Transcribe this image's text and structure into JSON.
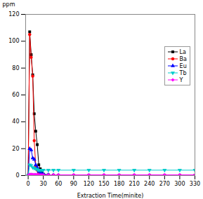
{
  "chart_data": {
    "type": "line",
    "title": "",
    "xlabel": "Extraction Time(minite)",
    "ylabel": "ppm",
    "x": [
      0,
      3,
      6,
      9,
      12,
      15,
      18,
      21,
      24,
      27,
      30,
      40,
      50,
      60,
      90,
      120,
      150,
      180,
      210,
      240,
      270,
      300,
      330
    ],
    "series": [
      {
        "name": "La",
        "color": "black",
        "marker": "square",
        "values": [
          0,
          107,
          90,
          75,
          46,
          33,
          23,
          8,
          5,
          2,
          1,
          0.5,
          0.3,
          0.1,
          0.1,
          0.1,
          0.1,
          0.1,
          0.1,
          0.1,
          0.1,
          0.1,
          0.1
        ]
      },
      {
        "name": "Ba",
        "color": "red",
        "marker": "circle",
        "values": [
          0,
          105,
          88,
          74,
          26,
          7,
          4,
          2,
          1,
          0.5,
          0.3,
          0.2,
          0.1,
          0.1,
          0.1,
          0.1,
          0.1,
          0.1,
          0.1,
          0.1,
          0.1,
          0.1,
          0.1
        ]
      },
      {
        "name": "Eu",
        "color": "blue",
        "marker": "triangle-up",
        "values": [
          0,
          20,
          19,
          13,
          12,
          8,
          6,
          3,
          2,
          1.5,
          1,
          0.5,
          0.3,
          0.2,
          0.1,
          0.1,
          0.1,
          0.1,
          0.1,
          0.1,
          0.1,
          0.1,
          0.1
        ]
      },
      {
        "name": "Tb",
        "color": "#00CCCC",
        "marker": "triangle-down",
        "values": [
          0,
          8,
          7.5,
          6,
          5.5,
          5,
          4.5,
          4,
          4,
          4,
          4,
          4,
          4,
          4,
          4,
          4,
          4,
          4,
          4,
          4,
          4,
          4,
          4
        ]
      },
      {
        "name": "Y",
        "color": "magenta",
        "marker": "diamond",
        "values": [
          0,
          1.0,
          1.0,
          0.8,
          0.8,
          0.8,
          0.7,
          0.7,
          0.6,
          0.5,
          0.5,
          0.5,
          0.5,
          0.5,
          0.5,
          0.5,
          0.5,
          0.5,
          0.5,
          0.5,
          0.5,
          0.5,
          0.5
        ]
      }
    ],
    "xlim": [
      -5,
      330
    ],
    "ylim": [
      0,
      120
    ],
    "xticks": [
      0,
      30,
      60,
      90,
      120,
      150,
      180,
      210,
      240,
      270,
      300,
      330
    ],
    "yticks": [
      0,
      20,
      40,
      60,
      80,
      100,
      120
    ],
    "grid": false,
    "legend": "right"
  }
}
